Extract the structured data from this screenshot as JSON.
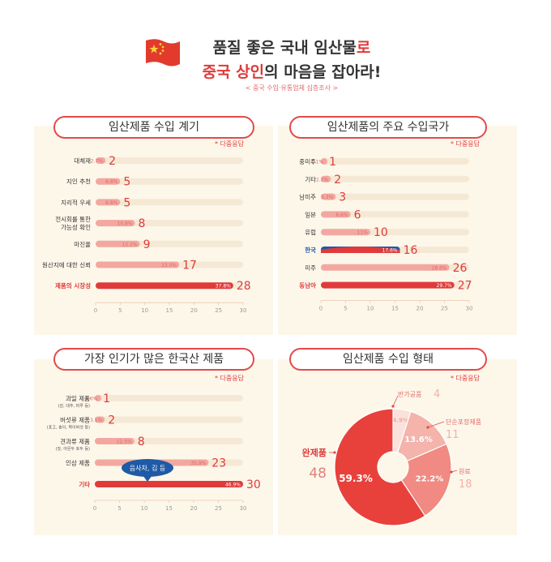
{
  "header": {
    "title_line1_a": "품질 좋은 국내 임산물",
    "title_line1_b": "로",
    "title_line2_a": "중국 상인",
    "title_line2_b": "의 마음을 잡아라!",
    "subtitle": "< 중국 수입·유통업체 심층조사 >"
  },
  "colors": {
    "red": "#e03a3a",
    "pink": "#f2a8a0",
    "track": "#f5e9d6",
    "blue": "#1f5aa6"
  },
  "chart_data": [
    {
      "type": "bar",
      "title": "임산제품 수입 계기",
      "note": "* 다중응답",
      "categories": [
        "대체재",
        "지인 추천",
        "지리적 우세",
        "전시회를 통한\n가능성 확인",
        "마진율",
        "원산지에 대한 신뢰",
        "제품의 시장성"
      ],
      "values": [
        2,
        5,
        5,
        8,
        9,
        17,
        28
      ],
      "percent_labels": [
        "2.7%",
        "6.8%",
        "6.8%",
        "10.8%",
        "12.2%",
        "23.0%",
        "37.8%"
      ],
      "ticks": [
        0,
        5,
        10,
        15,
        20,
        25,
        30
      ],
      "xlim": [
        0,
        30
      ]
    },
    {
      "type": "bar",
      "title": "임산제품의 주요 수입국가",
      "note": "* 다중응답",
      "categories": [
        "중미주",
        "기타",
        "남미주",
        "일본",
        "유럽",
        "한국",
        "미주",
        "동남아"
      ],
      "values": [
        1,
        2,
        3,
        6,
        10,
        16,
        26,
        27
      ],
      "percent_labels": [
        "1.1%",
        "2.2%",
        "3.3%",
        "6.6%",
        "11%",
        "17.6%",
        "28.6%",
        "29.7%"
      ],
      "ticks": [
        0,
        5,
        10,
        15,
        20,
        25,
        30
      ],
      "xlim": [
        0,
        30
      ]
    },
    {
      "type": "bar",
      "title": "가장 인기가 많은 한국산 제품",
      "note": "* 다중응답",
      "categories": [
        "과일 제품",
        "버섯류 제품",
        "견과류 제품",
        "인삼 제품",
        "기타"
      ],
      "category_subs": [
        "(감, 대추, 머루 등)",
        "(표고, 송이, 목이버섯 등)",
        "(잣, 아몬두 호두 등)",
        "",
        ""
      ],
      "values": [
        1,
        2,
        8,
        23,
        30
      ],
      "percent_labels": [
        "1.6%",
        "3.1%",
        "12.5%",
        "35.9%",
        "46.9%"
      ],
      "ticks": [
        0,
        5,
        10,
        15,
        20,
        25,
        30
      ],
      "xlim": [
        0,
        30
      ],
      "callout": "음사차, 김 등"
    },
    {
      "type": "pie",
      "title": "임산제품 수입 형태",
      "note": "* 다중응답",
      "slices": [
        {
          "name": "완제품",
          "value": 48,
          "percent": "59.3%"
        },
        {
          "name": "반가공품",
          "value": 4,
          "percent": "4.9%"
        },
        {
          "name": "단순포장제품",
          "value": 11,
          "percent": "13.6%"
        },
        {
          "name": "원료",
          "value": 18,
          "percent": "22.2%"
        }
      ]
    }
  ]
}
